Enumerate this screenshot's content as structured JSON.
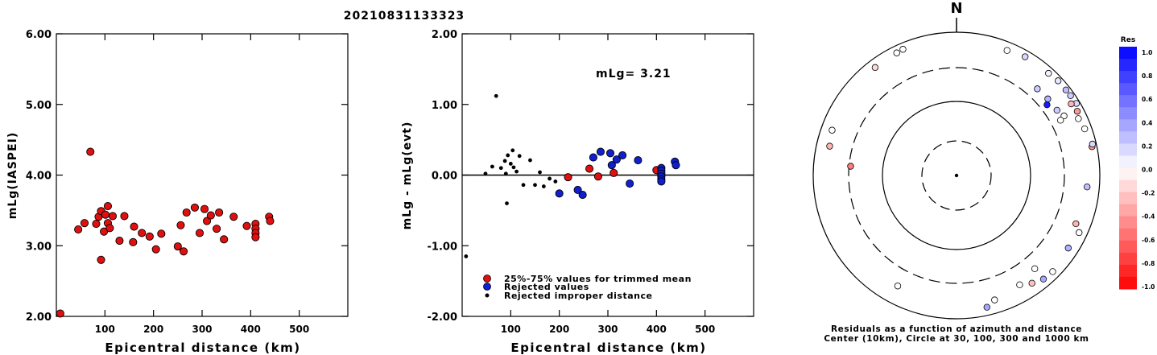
{
  "event_id": "20210831133323",
  "north_label": "N",
  "colorbar": {
    "title": "Res",
    "ticks": [
      "1.0",
      "0.8",
      "0.6",
      "0.4",
      "0.2",
      "0.0",
      "-0.2",
      "-0.4",
      "-0.6",
      "-0.8",
      "-1.0"
    ]
  },
  "polar_caption": {
    "line1": "Residuals as a function of azimuth and distance",
    "line2": "Center (10km), Circle at 30, 100, 300 and 1000 km"
  },
  "chart_data": [
    {
      "type": "scatter",
      "xlabel": "Epicentral distance (km)",
      "ylabel": "mLg(IASPEI)",
      "xlim": [
        0,
        600
      ],
      "ylim": [
        2.0,
        6.0
      ],
      "x_ticks": [
        100,
        200,
        300,
        400,
        500
      ],
      "y_ticks": [
        "2.00",
        "3.00",
        "4.00",
        "5.00",
        "6.00"
      ],
      "series": [
        {
          "color": "#e01010",
          "points": [
            [
              8,
              2.04
            ],
            [
              45,
              3.23
            ],
            [
              58,
              3.32
            ],
            [
              70,
              4.33
            ],
            [
              82,
              3.31
            ],
            [
              87,
              3.41
            ],
            [
              92,
              3.49
            ],
            [
              92,
              2.8
            ],
            [
              98,
              3.2
            ],
            [
              101,
              3.44
            ],
            [
              106,
              3.56
            ],
            [
              106,
              3.32
            ],
            [
              110,
              3.25
            ],
            [
              116,
              3.42
            ],
            [
              130,
              3.07
            ],
            [
              140,
              3.42
            ],
            [
              158,
              3.05
            ],
            [
              160,
              3.27
            ],
            [
              176,
              3.18
            ],
            [
              192,
              3.13
            ],
            [
              205,
              2.95
            ],
            [
              216,
              3.17
            ],
            [
              250,
              2.99
            ],
            [
              256,
              3.29
            ],
            [
              262,
              2.92
            ],
            [
              268,
              3.47
            ],
            [
              285,
              3.54
            ],
            [
              295,
              3.18
            ],
            [
              305,
              3.52
            ],
            [
              310,
              3.35
            ],
            [
              318,
              3.43
            ],
            [
              330,
              3.24
            ],
            [
              335,
              3.47
            ],
            [
              345,
              3.09
            ],
            [
              365,
              3.41
            ],
            [
              392,
              3.28
            ],
            [
              410,
              3.31
            ],
            [
              410,
              3.24
            ],
            [
              410,
              3.18
            ],
            [
              410,
              3.12
            ],
            [
              438,
              3.41
            ],
            [
              440,
              3.35
            ]
          ]
        }
      ]
    },
    {
      "type": "scatter",
      "xlabel": "Epicentral distance (km)",
      "ylabel": "mLg - mLg(evt)",
      "annotation": "mLg= 3.21",
      "xlim": [
        0,
        600
      ],
      "ylim": [
        -2.0,
        2.0
      ],
      "x_ticks": [
        100,
        200,
        300,
        400,
        500
      ],
      "y_ticks": [
        "-2.00",
        "-1.00",
        "0.00",
        "1.00",
        "2.00"
      ],
      "zero_line": true,
      "legend": [
        {
          "label": "25%-75% values for trimmed mean",
          "color": "#e01010"
        },
        {
          "label": "Rejected values",
          "color": "#1020d0"
        },
        {
          "label": "Rejected improper distance",
          "color": "#000000"
        }
      ],
      "series": [
        {
          "name": "25%-75% values for trimmed mean",
          "color": "#e01010",
          "points": [
            [
              218,
              -0.03
            ],
            [
              262,
              0.09
            ],
            [
              280,
              -0.02
            ],
            [
              312,
              0.03
            ],
            [
              400,
              0.07
            ]
          ]
        },
        {
          "name": "Rejected values",
          "color": "#1020d0",
          "points": [
            [
              200,
              -0.26
            ],
            [
              238,
              -0.21
            ],
            [
              248,
              -0.28
            ],
            [
              270,
              0.25
            ],
            [
              285,
              0.33
            ],
            [
              305,
              0.31
            ],
            [
              308,
              0.14
            ],
            [
              318,
              0.22
            ],
            [
              330,
              0.28
            ],
            [
              345,
              -0.12
            ],
            [
              362,
              0.21
            ],
            [
              410,
              0.1
            ],
            [
              410,
              0.06
            ],
            [
              410,
              0.02
            ],
            [
              410,
              -0.02
            ],
            [
              410,
              -0.06
            ],
            [
              410,
              -0.09
            ],
            [
              438,
              0.19
            ],
            [
              440,
              0.14
            ]
          ]
        },
        {
          "name": "Rejected improper distance",
          "color": "#000000",
          "points": [
            [
              8,
              -1.15
            ],
            [
              48,
              0.02
            ],
            [
              62,
              0.12
            ],
            [
              70,
              1.12
            ],
            [
              80,
              0.1
            ],
            [
              88,
              0.2
            ],
            [
              90,
              0.02
            ],
            [
              92,
              -0.4
            ],
            [
              94,
              0.28
            ],
            [
              100,
              0.16
            ],
            [
              104,
              0.35
            ],
            [
              106,
              0.11
            ],
            [
              112,
              0.05
            ],
            [
              118,
              0.27
            ],
            [
              126,
              -0.14
            ],
            [
              140,
              0.21
            ],
            [
              150,
              -0.14
            ],
            [
              160,
              0.04
            ],
            [
              168,
              -0.16
            ],
            [
              180,
              -0.05
            ],
            [
              192,
              -0.09
            ]
          ]
        }
      ]
    },
    {
      "type": "scatter",
      "subtype": "polar-residuals",
      "rings_km": [
        30,
        100,
        300,
        1000
      ],
      "center_km": 10,
      "points": [
        {
          "az": 334,
          "dist": 790,
          "res": 0.0
        },
        {
          "az": 337,
          "dist": 810,
          "res": 0.0
        },
        {
          "az": 323,
          "dist": 760,
          "res": -0.15
        },
        {
          "az": 290,
          "dist": 690,
          "res": 0.0
        },
        {
          "az": 283,
          "dist": 640,
          "res": -0.3
        },
        {
          "az": 275,
          "dist": 285,
          "res": -0.5
        },
        {
          "az": 22,
          "dist": 750,
          "res": 0.0
        },
        {
          "az": 30,
          "dist": 810,
          "res": 0.15
        },
        {
          "az": 42,
          "dist": 820,
          "res": 0.05
        },
        {
          "az": 47,
          "dist": 860,
          "res": 0.1
        },
        {
          "az": 52,
          "dist": 860,
          "res": 0.25
        },
        {
          "az": 55,
          "dist": 870,
          "res": 0.2
        },
        {
          "az": 59,
          "dist": 890,
          "res": 0.15
        },
        {
          "az": 58,
          "dist": 760,
          "res": -0.3
        },
        {
          "az": 62,
          "dist": 800,
          "res": -0.4
        },
        {
          "az": 65,
          "dist": 740,
          "res": 0.0
        },
        {
          "az": 70,
          "dist": 790,
          "res": 0.0
        },
        {
          "az": 78,
          "dist": 850,
          "res": -0.4
        },
        {
          "az": 77,
          "dist": 880,
          "res": 0.15
        },
        {
          "az": 43,
          "dist": 430,
          "res": 0.2
        },
        {
          "az": 50,
          "dist": 440,
          "res": 0.3
        },
        {
          "az": 52,
          "dist": 380,
          "res": 0.9
        },
        {
          "az": 57,
          "dist": 450,
          "res": 0.2
        },
        {
          "az": 61,
          "dist": 500,
          "res": 0.0
        },
        {
          "az": 62,
          "dist": 420,
          "res": 0.0
        },
        {
          "az": 95,
          "dist": 660,
          "res": 0.25
        },
        {
          "az": 112,
          "dist": 610,
          "res": -0.3
        },
        {
          "az": 115,
          "dist": 760,
          "res": 0.0
        },
        {
          "az": 123,
          "dist": 710,
          "res": 0.3
        },
        {
          "az": 135,
          "dist": 780,
          "res": 0.0
        },
        {
          "az": 140,
          "dist": 760,
          "res": 0.35
        },
        {
          "az": 140,
          "dist": 480,
          "res": 0.0
        },
        {
          "az": 145,
          "dist": 670,
          "res": -0.25
        },
        {
          "az": 150,
          "dist": 560,
          "res": 0.0
        },
        {
          "az": 163,
          "dist": 640,
          "res": 0.0
        },
        {
          "az": 167,
          "dist": 760,
          "res": 0.35
        },
        {
          "az": 208,
          "dist": 540,
          "res": 0.0
        }
      ]
    }
  ]
}
